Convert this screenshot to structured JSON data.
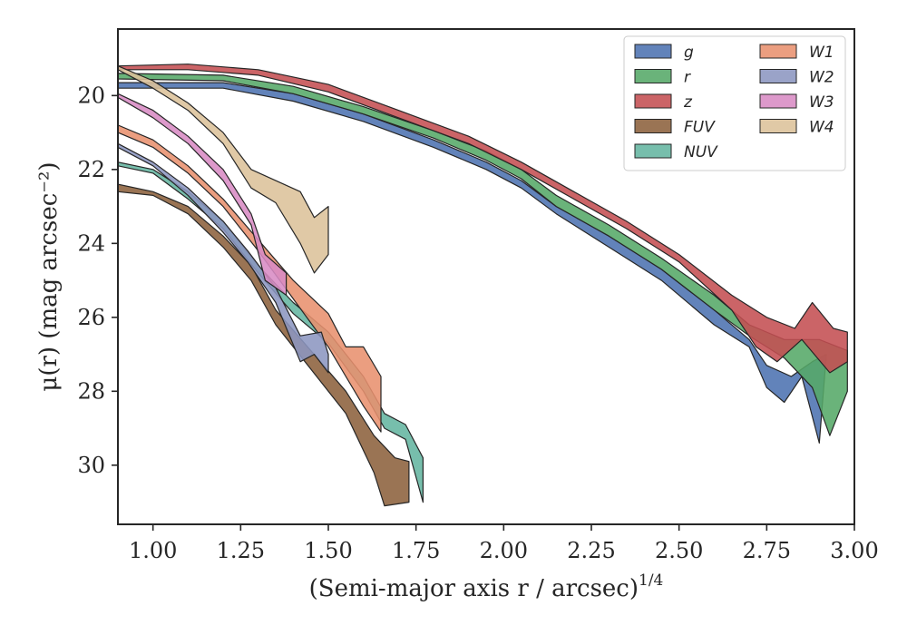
{
  "chart_data": {
    "type": "area",
    "title": "",
    "xlabel": "(Semi-major axis r / arcsec)",
    "xlabel_exponent": "1/4",
    "ylabel": "μ(r) (mag arcsec⁻²)",
    "xlim": [
      0.9,
      3.0
    ],
    "ylim": [
      31.6,
      18.2
    ],
    "y_inverted": true,
    "grid": false,
    "legend_position": "top-right",
    "legend_columns": 2,
    "xticks": [
      "1.00",
      "1.25",
      "1.50",
      "1.75",
      "2.00",
      "2.25",
      "2.50",
      "2.75",
      "3.00"
    ],
    "xtick_values": [
      1.0,
      1.25,
      1.5,
      1.75,
      2.0,
      2.25,
      2.5,
      2.75,
      3.0
    ],
    "yticks": [
      "20",
      "22",
      "24",
      "26",
      "28",
      "30"
    ],
    "ytick_values": [
      20,
      22,
      24,
      26,
      28,
      30
    ],
    "series": [
      {
        "name": "g",
        "color": "#4c72b0",
        "upper": [
          [
            0.9,
            19.65
          ],
          [
            1.2,
            19.65
          ],
          [
            1.4,
            19.95
          ],
          [
            1.6,
            20.5
          ],
          [
            1.8,
            21.2
          ],
          [
            1.95,
            21.8
          ],
          [
            2.05,
            22.3
          ],
          [
            2.15,
            23.0
          ],
          [
            2.3,
            23.8
          ],
          [
            2.45,
            24.7
          ],
          [
            2.6,
            25.8
          ],
          [
            2.7,
            26.6
          ],
          [
            2.75,
            27.3
          ],
          [
            2.82,
            27.6
          ],
          [
            2.88,
            27.2
          ],
          [
            2.92,
            27.0
          ]
        ],
        "lower": [
          [
            0.9,
            19.8
          ],
          [
            1.2,
            19.8
          ],
          [
            1.4,
            20.15
          ],
          [
            1.6,
            20.7
          ],
          [
            1.8,
            21.4
          ],
          [
            1.95,
            22.0
          ],
          [
            2.05,
            22.5
          ],
          [
            2.15,
            23.2
          ],
          [
            2.3,
            24.1
          ],
          [
            2.45,
            25.0
          ],
          [
            2.6,
            26.2
          ],
          [
            2.7,
            26.8
          ],
          [
            2.75,
            27.9
          ],
          [
            2.8,
            28.3
          ],
          [
            2.85,
            27.6
          ],
          [
            2.9,
            29.4
          ]
        ]
      },
      {
        "name": "r",
        "color": "#55a868",
        "upper": [
          [
            0.9,
            19.4
          ],
          [
            1.2,
            19.45
          ],
          [
            1.4,
            19.75
          ],
          [
            1.6,
            20.3
          ],
          [
            1.8,
            20.95
          ],
          [
            1.95,
            21.5
          ],
          [
            2.05,
            22.0
          ],
          [
            2.15,
            22.7
          ],
          [
            2.3,
            23.5
          ],
          [
            2.45,
            24.4
          ],
          [
            2.6,
            25.4
          ],
          [
            2.7,
            26.2
          ],
          [
            2.8,
            26.6
          ],
          [
            2.9,
            26.6
          ],
          [
            2.98,
            26.9
          ]
        ],
        "lower": [
          [
            0.9,
            19.55
          ],
          [
            1.2,
            19.6
          ],
          [
            1.4,
            19.95
          ],
          [
            1.6,
            20.5
          ],
          [
            1.8,
            21.15
          ],
          [
            1.95,
            21.75
          ],
          [
            2.05,
            22.25
          ],
          [
            2.15,
            23.0
          ],
          [
            2.3,
            23.8
          ],
          [
            2.45,
            24.7
          ],
          [
            2.6,
            25.8
          ],
          [
            2.7,
            26.5
          ],
          [
            2.8,
            27.1
          ],
          [
            2.88,
            27.9
          ],
          [
            2.93,
            29.2
          ],
          [
            2.98,
            28.0
          ]
        ]
      },
      {
        "name": "z",
        "color": "#c44e52",
        "upper": [
          [
            0.9,
            19.2
          ],
          [
            1.1,
            19.15
          ],
          [
            1.3,
            19.3
          ],
          [
            1.5,
            19.7
          ],
          [
            1.7,
            20.4
          ],
          [
            1.9,
            21.1
          ],
          [
            2.05,
            21.8
          ],
          [
            2.2,
            22.6
          ],
          [
            2.35,
            23.4
          ],
          [
            2.5,
            24.3
          ],
          [
            2.65,
            25.4
          ],
          [
            2.75,
            26.0
          ],
          [
            2.83,
            26.3
          ],
          [
            2.88,
            25.6
          ],
          [
            2.94,
            26.3
          ],
          [
            2.98,
            26.4
          ]
        ],
        "lower": [
          [
            0.9,
            19.3
          ],
          [
            1.1,
            19.3
          ],
          [
            1.3,
            19.45
          ],
          [
            1.5,
            19.9
          ],
          [
            1.7,
            20.6
          ],
          [
            1.9,
            21.3
          ],
          [
            2.05,
            22.0
          ],
          [
            2.2,
            22.8
          ],
          [
            2.35,
            23.6
          ],
          [
            2.5,
            24.5
          ],
          [
            2.65,
            25.8
          ],
          [
            2.72,
            26.8
          ],
          [
            2.78,
            27.2
          ],
          [
            2.85,
            26.6
          ],
          [
            2.93,
            27.5
          ],
          [
            2.98,
            27.2
          ]
        ]
      },
      {
        "name": "FUV",
        "color": "#8c613c",
        "upper": [
          [
            0.9,
            22.4
          ],
          [
            1.0,
            22.6
          ],
          [
            1.1,
            23.0
          ],
          [
            1.2,
            23.8
          ],
          [
            1.28,
            24.6
          ],
          [
            1.35,
            25.8
          ],
          [
            1.45,
            26.9
          ],
          [
            1.55,
            28.0
          ],
          [
            1.63,
            29.2
          ],
          [
            1.69,
            29.8
          ],
          [
            1.73,
            29.9
          ]
        ],
        "lower": [
          [
            0.9,
            22.6
          ],
          [
            1.0,
            22.7
          ],
          [
            1.1,
            23.2
          ],
          [
            1.2,
            24.1
          ],
          [
            1.28,
            25.0
          ],
          [
            1.35,
            26.2
          ],
          [
            1.45,
            27.4
          ],
          [
            1.55,
            28.6
          ],
          [
            1.63,
            30.2
          ],
          [
            1.66,
            31.1
          ],
          [
            1.73,
            31.0
          ]
        ]
      },
      {
        "name": "NUV",
        "color": "#64b5a0",
        "upper": [
          [
            0.9,
            21.8
          ],
          [
            1.0,
            22.0
          ],
          [
            1.1,
            22.6
          ],
          [
            1.2,
            23.4
          ],
          [
            1.3,
            24.6
          ],
          [
            1.4,
            25.6
          ],
          [
            1.5,
            26.4
          ],
          [
            1.6,
            27.6
          ],
          [
            1.66,
            28.6
          ],
          [
            1.72,
            28.9
          ],
          [
            1.77,
            29.8
          ]
        ],
        "lower": [
          [
            0.9,
            21.9
          ],
          [
            1.0,
            22.1
          ],
          [
            1.1,
            22.8
          ],
          [
            1.2,
            23.6
          ],
          [
            1.3,
            24.8
          ],
          [
            1.4,
            25.9
          ],
          [
            1.5,
            26.7
          ],
          [
            1.6,
            28.0
          ],
          [
            1.66,
            29.0
          ],
          [
            1.72,
            29.3
          ],
          [
            1.77,
            31.0
          ]
        ]
      },
      {
        "name": "W1",
        "color": "#e8916e",
        "upper": [
          [
            0.9,
            20.8
          ],
          [
            1.0,
            21.2
          ],
          [
            1.1,
            21.9
          ],
          [
            1.2,
            22.8
          ],
          [
            1.3,
            23.9
          ],
          [
            1.4,
            25.0
          ],
          [
            1.5,
            25.9
          ],
          [
            1.55,
            26.8
          ],
          [
            1.6,
            26.8
          ],
          [
            1.65,
            27.6
          ]
        ],
        "lower": [
          [
            0.9,
            21.0
          ],
          [
            1.0,
            21.4
          ],
          [
            1.1,
            22.1
          ],
          [
            1.2,
            23.0
          ],
          [
            1.3,
            24.2
          ],
          [
            1.4,
            25.5
          ],
          [
            1.5,
            26.8
          ],
          [
            1.55,
            27.6
          ],
          [
            1.6,
            28.4
          ],
          [
            1.65,
            29.1
          ]
        ]
      },
      {
        "name": "W2",
        "color": "#8c96c0",
        "upper": [
          [
            0.9,
            21.3
          ],
          [
            1.0,
            21.8
          ],
          [
            1.1,
            22.5
          ],
          [
            1.2,
            23.4
          ],
          [
            1.27,
            24.2
          ],
          [
            1.35,
            25.2
          ],
          [
            1.42,
            26.5
          ],
          [
            1.48,
            26.4
          ],
          [
            1.5,
            27.0
          ]
        ],
        "lower": [
          [
            0.9,
            21.4
          ],
          [
            1.0,
            21.9
          ],
          [
            1.1,
            22.7
          ],
          [
            1.2,
            23.7
          ],
          [
            1.27,
            24.5
          ],
          [
            1.35,
            25.6
          ],
          [
            1.42,
            27.2
          ],
          [
            1.46,
            27.0
          ],
          [
            1.5,
            27.5
          ]
        ]
      },
      {
        "name": "W3",
        "color": "#d88bc4",
        "upper": [
          [
            0.9,
            19.95
          ],
          [
            1.0,
            20.4
          ],
          [
            1.1,
            21.1
          ],
          [
            1.2,
            22.0
          ],
          [
            1.28,
            23.2
          ],
          [
            1.32,
            24.3
          ],
          [
            1.38,
            24.8
          ]
        ],
        "lower": [
          [
            0.9,
            20.05
          ],
          [
            1.0,
            20.6
          ],
          [
            1.1,
            21.3
          ],
          [
            1.2,
            22.3
          ],
          [
            1.28,
            23.5
          ],
          [
            1.32,
            25.0
          ],
          [
            1.38,
            25.4
          ]
        ]
      },
      {
        "name": "W4",
        "color": "#dcc19a",
        "upper": [
          [
            0.9,
            19.2
          ],
          [
            1.0,
            19.6
          ],
          [
            1.1,
            20.2
          ],
          [
            1.2,
            21.0
          ],
          [
            1.28,
            22.0
          ],
          [
            1.35,
            22.3
          ],
          [
            1.42,
            22.6
          ],
          [
            1.46,
            23.3
          ],
          [
            1.5,
            23.0
          ]
        ],
        "lower": [
          [
            0.9,
            19.3
          ],
          [
            1.0,
            19.8
          ],
          [
            1.1,
            20.4
          ],
          [
            1.2,
            21.3
          ],
          [
            1.28,
            22.5
          ],
          [
            1.35,
            22.9
          ],
          [
            1.42,
            24.0
          ],
          [
            1.46,
            24.8
          ],
          [
            1.5,
            24.3
          ]
        ]
      }
    ]
  }
}
